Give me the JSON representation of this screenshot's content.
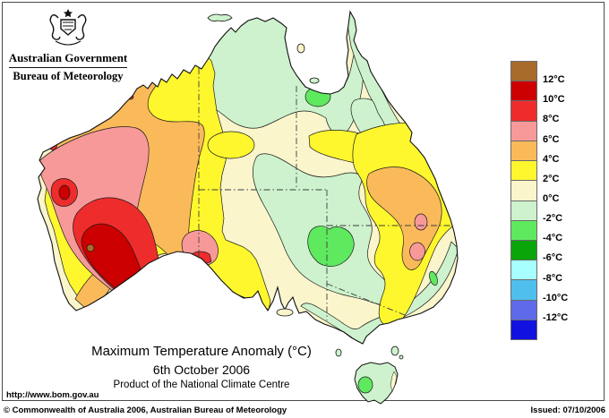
{
  "logo": {
    "government": "Australian Government",
    "bureau": "Bureau of Meteorology"
  },
  "map": {
    "title": "Maximum Temperature Anomaly (°C)",
    "date": "6th October 2006",
    "product_line": "Product of the National Climate Centre"
  },
  "legend": {
    "unit": "°C",
    "blocks": [
      "brown",
      "red-dark",
      "red",
      "pink",
      "orange",
      "yellow",
      "cream",
      "green-light",
      "green-mid",
      "green",
      "cyan-light",
      "cyan",
      "blue-violet",
      "blue"
    ],
    "boundary_labels": [
      "12°C",
      "10°C",
      "8°C",
      "6°C",
      "4°C",
      "2°C",
      "0°C",
      "-2°C",
      "-4°C",
      "-6°C",
      "-8°C",
      "-10°C",
      "-12°C"
    ]
  },
  "palette": {
    "brown": "#A96B2C",
    "red-dark": "#CC0000",
    "red": "#EE2C2C",
    "pink": "#F79999",
    "orange": "#FBBA5A",
    "yellow": "#FFF72E",
    "cream": "#FAF5CB",
    "green-light": "#CDF2CD",
    "green-mid": "#5FE95F",
    "green": "#0AA50A",
    "cyan-light": "#A8FFFF",
    "cyan": "#4FBFEE",
    "blue-violet": "#5F6AEA",
    "blue": "#1111E0"
  },
  "footer": {
    "url": "http://www.bom.gov.au",
    "copyright": "© Commonwealth of Australia 2006, Australian Bureau of Meteorology",
    "issued": "Issued: 07/10/2006"
  }
}
